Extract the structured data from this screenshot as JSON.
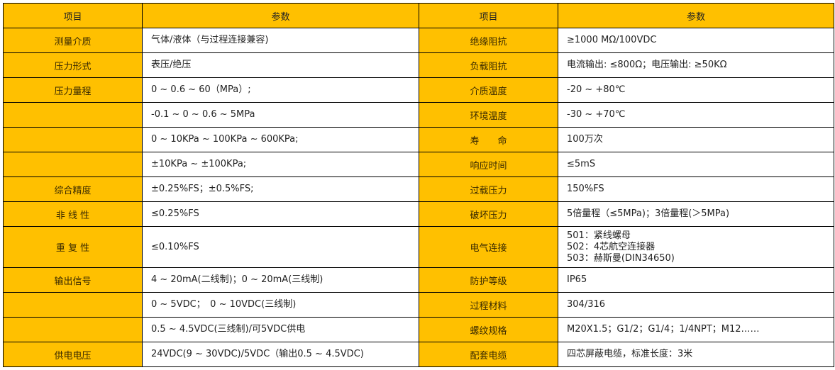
{
  "header": {
    "item": "项目",
    "param": "参数",
    "item2": "项目",
    "param2": "参数"
  },
  "colors": {
    "label_fill": "#FFC000",
    "grid": "#000000"
  },
  "rows": [
    {
      "l_label": "测量介质",
      "l_value": "气体/液体（与过程连接兼容)",
      "r_label": "绝缘阻抗",
      "r_value": "≥1000 MΩ/100VDC"
    },
    {
      "l_label": "压力形式",
      "l_value": "表压/绝压",
      "r_label": "负载阻抗",
      "r_value": "电流输出: ≤800Ω；电压输出: ≥50KΩ"
    },
    {
      "l_label": "压力量程",
      "l_value": "0 ~ 0.6 ~ 60（MPa）;",
      "r_label": "介质温度",
      "r_value": "-20 ~ +80℃"
    },
    {
      "l_label": "",
      "l_value": "-0.1 ~ 0 ~ 0.6 ~ 5MPa",
      "r_label": "环境温度",
      "r_value": "-30 ~ +70℃"
    },
    {
      "l_label": "",
      "l_value": "0 ~ 10KPa ~ 100KPa ~ 600KPa;",
      "r_label": "寿　　命",
      "r_value": "100万次"
    },
    {
      "l_label": "",
      "l_value": "±10KPa ~ ±100KPa;",
      "r_label": "响应时间",
      "r_value": "≤5mS"
    },
    {
      "l_label": "综合精度",
      "l_value": "±0.25%FS；±0.5%FS;",
      "r_label": "过载压力",
      "r_value": "150%FS"
    },
    {
      "l_label": "非 线 性",
      "l_value": "≤0.25%FS",
      "r_label": "破坏压力",
      "r_value": "5倍量程（≤5MPa)；3倍量程(＞5MPa)"
    },
    {
      "l_label": "重 复 性",
      "l_value": "≤0.10%FS",
      "r_label": "电气连接",
      "r_value_lines": [
        "501：紧线螺母",
        "502：4芯航空连接器",
        "503：赫斯曼(DIN34650)"
      ]
    },
    {
      "l_label": "输出信号",
      "l_value": "4 ~ 20mA(二线制)；0 ~ 20mA(三线制)",
      "r_label": "防护等级",
      "r_value": "IP65"
    },
    {
      "l_label": "",
      "l_value": "0 ~ 5VDC；　0 ~ 10VDC(三线制)",
      "r_label": "过程材料",
      "r_value": "304/316"
    },
    {
      "l_label": "",
      "l_value": "0.5 ~ 4.5VDC(三线制)/可5VDC供电",
      "r_label": "螺纹规格",
      "r_value": "M20X1.5；G1/2；G1/4；1/4NPT；M12……"
    },
    {
      "l_label": "供电电压",
      "l_value": "24VDC(9 ~ 30VDC)/5VDC（输出0.5 ~ 4.5VDC)",
      "r_label": "配套电缆",
      "r_value": "四芯屏蔽电缆，标准长度：3米"
    }
  ]
}
